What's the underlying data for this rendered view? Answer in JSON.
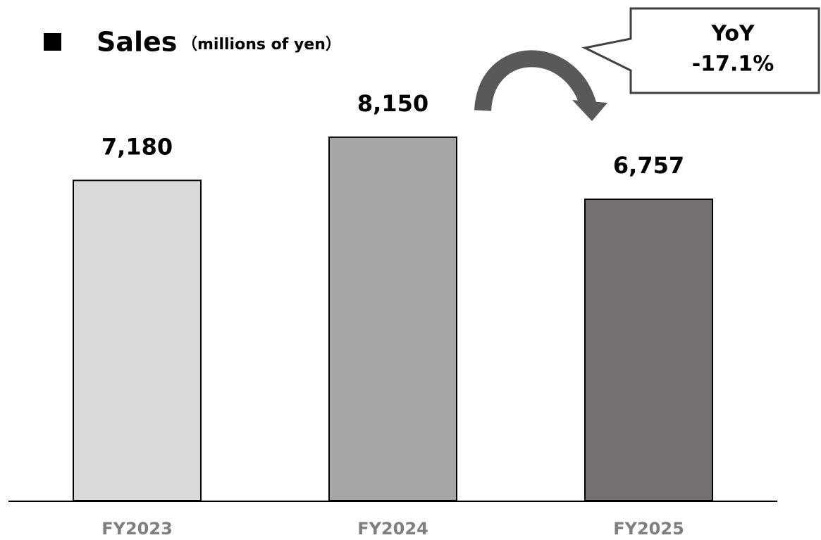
{
  "chart_data": {
    "type": "bar",
    "title": "Sales",
    "subtitle": "（millions of yen）",
    "annotations": [
      "YoY",
      "-17.1%"
    ],
    "categories": [
      "FY2023",
      "FY2024",
      "FY2025"
    ],
    "values": [
      7180,
      8150,
      6757
    ],
    "value_labels": [
      "7,180",
      "8,150",
      "6,757"
    ],
    "colors": [
      "#d9d9d9",
      "#a6a6a6",
      "#767171"
    ],
    "ylim": [
      0,
      9000
    ]
  }
}
